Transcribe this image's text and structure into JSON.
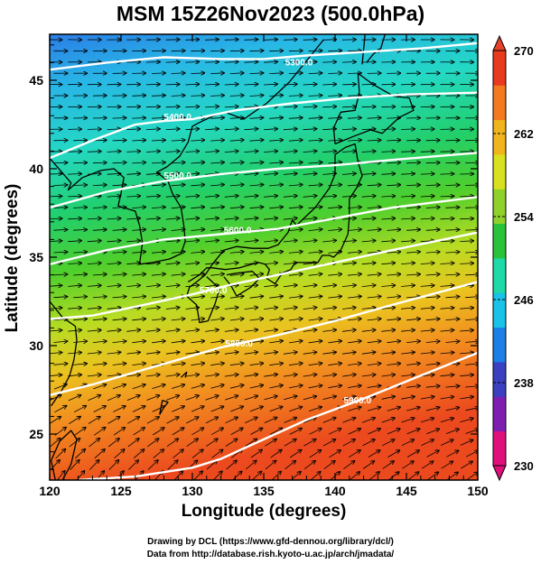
{
  "title": "MSM 15Z26Nov2023 (500.0hPa)",
  "xlabel": "Longitude (degrees)",
  "ylabel": "Latitude  (degrees)",
  "credits": {
    "line1": "Drawing by DCL (https://www.gfd-dennou.org/library/dcl/)",
    "line2": "Data from http://database.rish.kyoto-u.ac.jp/arch/jmadata/"
  },
  "map": {
    "lon_range": [
      120,
      150
    ],
    "lat_range": [
      22.4,
      47.6
    ],
    "x_ticks": [
      "120",
      "125",
      "130",
      "135",
      "140",
      "145",
      "150"
    ],
    "y_ticks": [
      "25",
      "30",
      "35",
      "40",
      "45"
    ],
    "contours": [
      {
        "label": "5300.0"
      },
      {
        "label": "5400.0"
      },
      {
        "label": "5500.0"
      },
      {
        "label": "5600.0"
      },
      {
        "label": "5700.0"
      },
      {
        "label": "5800.0"
      },
      {
        "label": "5900.0"
      }
    ]
  },
  "colorbar": {
    "labels": [
      "270",
      "262",
      "254",
      "246",
      "238",
      "230"
    ],
    "range": [
      230,
      270
    ],
    "colors": [
      "#e0107a",
      "#7c1fb0",
      "#3a40c0",
      "#1a7fe6",
      "#19c2e6",
      "#1fd9a8",
      "#27c43b",
      "#8fd12b",
      "#d9e01f",
      "#f0b41c",
      "#f37a1f",
      "#e83a1e"
    ]
  }
}
